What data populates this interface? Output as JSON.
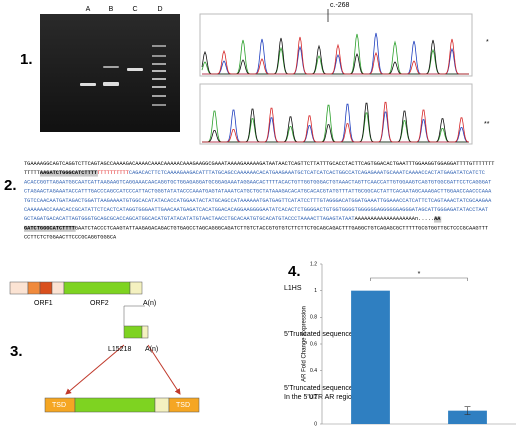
{
  "panel_labels": [
    "1.",
    "2.",
    "3.",
    "4."
  ],
  "gel": {
    "lanes": [
      "A",
      "B",
      "C",
      "D"
    ]
  },
  "chromatogram": {
    "position": "c.-268",
    "top_mark": "*",
    "bottom_mark": "**"
  },
  "sequence": {
    "lines": [
      [
        {
          "text": "TGAAAAGGCAGTCAGGTCTTCAGTAGCCAAAAGACAAAACAAACAAAAACAAAGAAGGCGAAATAAAAGAAAAAGATAATAACTCAGTTCTTATTTGCACCTACTTCAGTGGACACTGAATTTGGAAGGTGGAGGATTTTGTTTTTTT",
          "color": "#000000"
        }
      ],
      [
        {
          "text": "TTTTT",
          "color": "#000000"
        },
        {
          "text": "AAGATCTGGGCATCTTTT",
          "color": "#000000",
          "highlight": true
        },
        {
          "text": "TTTTTTTTTT",
          "color": "#e02020"
        },
        {
          "text": "CAGACACTTCTCAAAAGAAGACATTTATGCAGCCAAAAAACACATGAAGAAATGCTCATCATCACTGGCCATCAGAGAAATGCAAATCAAAACCACTATGAGATATCATCTC",
          "color": "#2a5db0"
        }
      ],
      [
        {
          "text": "ACACCGGTTAGAATGGCAATCATTAAGAAGTCAGGAAACAACAGGTGCTGGAGAGGATGCGGAGAAATAGGAACACTTTTACACTGTTGGTGGGACTGTAAACTAGTTCAACCATTGTGGAAGTCAGTGTGGCGATTCCTCAGGGAT",
          "color": "#2a5db0"
        }
      ],
      [
        {
          "text": "CTAGAACTAGAAATACCATTTGACCCAGCCATCCCATTACTGGGTATATACCCAAATGAGTATAAATCATGCTGCTATAAAGACACATGCACACGTATGTTTATTGCGGCACTATTCACAATAGCAAAGACTTGGAACCAACCCAAA",
          "color": "#2a5db0"
        }
      ],
      [
        {
          "text": "TGTCCAACAATGATAGACTGGATTAAGAAAATGTGGCACATATACACCATGGAATACTATGCAGCCATAAAAAATGATGAGTTCATATCCTTTGTAGGGACATGGATGAAATTGGAAACCATCATTCTCAGTAAACTATCGCAAGAA",
          "color": "#2a5db0"
        }
      ],
      [
        {
          "text": "CAAAAAACCAAACACCGCATATTCTCACTCATAGGTGGGAATTGAACAATGAGATCACATGGACACAGGAAGGGGAATATCACACTCTGGGGACTGTGGTGGGGTGGGGGGAGGGGGGAGGGATAGCATTGGGAGATATACCTAAT",
          "color": "#2a5db0"
        }
      ],
      [
        {
          "text": "GCTAGATGACACATTAGTGGGTGCAGCGCACCAGCATGGCACATGTATACATATGTAACTAACCTGCACAATGTGCACATGTACCCTAAAACTTAGAGTATAAT",
          "color": "#2a5db0"
        },
        {
          "text": "AAAAAAAAAAAAAAAAAAAn.....",
          "color": "#000000"
        },
        {
          "text": "AA",
          "color": "#000000",
          "highlight": true
        }
      ],
      [
        {
          "text": "GATCTGGGCATCTTTT",
          "color": "#000000",
          "highlight": true
        },
        {
          "text": "GAATCTACCCTCAAGTATTAAGAGACAGACTGTGAGCCTAGCAGGGCAGATCTTGTCTACCGTGTGTCTTCTTCTGCAGCAGACTTTGAGGCTGTCAGAGCGCTTTTTGCGTGGTTGCTCCCGCAAGTTT",
          "color": "#000000"
        }
      ],
      [
        {
          "text": "CCTTCTCTGGAACTTCCCGCAGGTGGGCA",
          "color": "#000000"
        }
      ]
    ]
  },
  "diagram": {
    "element": "L1HS",
    "orf1": "ORF1",
    "orf2": "ORF2",
    "polya": "A(n)",
    "truncated": "5'Truncated sequence",
    "insert_name": "L15218",
    "insert_polya": "A(n)",
    "tsd_left": "TSD",
    "tsd_right": "TSD",
    "inserted": [
      "5'Truncated sequence",
      "In the 5'UTR AR region"
    ]
  },
  "chart_data": {
    "type": "bar",
    "ylabel": "AR Fold Change Expression",
    "categories": [
      null,
      null
    ],
    "values": [
      1,
      0.1
    ],
    "errors": [
      0,
      0.03
    ],
    "color": "#2f7fc1",
    "significance": "*",
    "ylim": [
      0,
      1.2
    ],
    "yticks": [
      0,
      0.2,
      0.4,
      0.6,
      0.8,
      1,
      1.2
    ],
    "grid": false
  }
}
